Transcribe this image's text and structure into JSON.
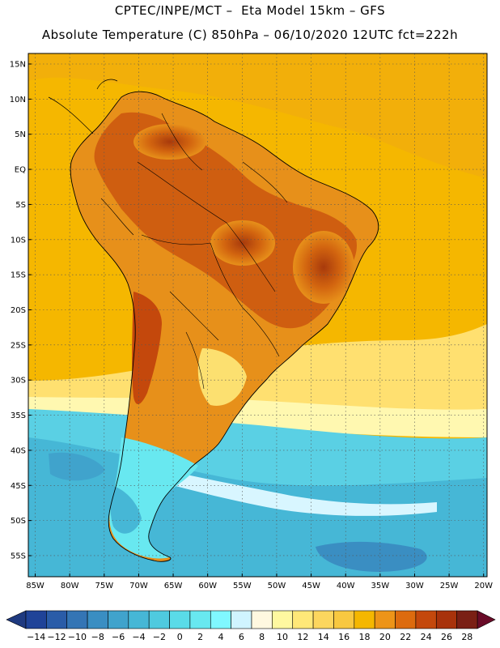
{
  "header": {
    "line1": "CPTEC/INPE/MCT –  Eta Model 15km – GFS",
    "line2": "Absolute Temperature (C) 850hPa – 06/10/2020 12UTC fct=222h"
  },
  "map": {
    "lat_labels": [
      "15N",
      "10N",
      "5N",
      "EQ",
      "5S",
      "10S",
      "15S",
      "20S",
      "25S",
      "30S",
      "35S",
      "40S",
      "45S",
      "50S",
      "55S"
    ],
    "lat_values": [
      15,
      10,
      5,
      0,
      -5,
      -10,
      -15,
      -20,
      -25,
      -30,
      -35,
      -40,
      -45,
      -50,
      -55
    ],
    "lon_labels": [
      "85W",
      "80W",
      "75W",
      "70W",
      "65W",
      "60W",
      "55W",
      "50W",
      "45W",
      "40W",
      "35W",
      "30W",
      "25W",
      "20W"
    ],
    "lon_values": [
      -85,
      -80,
      -75,
      -70,
      -65,
      -60,
      -55,
      -50,
      -45,
      -40,
      -35,
      -30,
      -25,
      -20
    ],
    "lat_range": [
      -58,
      16.5
    ],
    "lon_range": [
      -86,
      -19.5
    ],
    "ocean_color": "#f5b700"
  },
  "colorbar": {
    "labels": [
      "-14",
      "-12",
      "-10",
      "-8",
      "-6",
      "-4",
      "-2",
      "0",
      "2",
      "4",
      "6",
      "8",
      "10",
      "12",
      "14",
      "16",
      "18",
      "20",
      "22",
      "24",
      "26",
      "28"
    ],
    "colors": [
      "#1f4398",
      "#2a5ca8",
      "#3475b5",
      "#3a8ec2",
      "#40a3cc",
      "#46b7d6",
      "#4fcadf",
      "#5adbe8",
      "#68e8f0",
      "#80f8ff",
      "#d0f4ff",
      "#fff8e0",
      "#fff8a0",
      "#ffe878",
      "#fcd65e",
      "#f8c840",
      "#f5b700",
      "#ed9418",
      "#dd6b0e",
      "#c4480c",
      "#a8320b",
      "#7a1f14"
    ]
  }
}
